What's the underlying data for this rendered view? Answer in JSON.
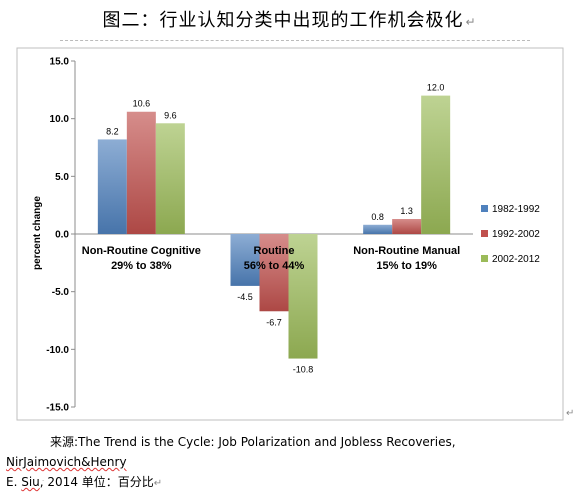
{
  "page": {
    "title": "图二：行业认知分类中出现的工作机会极化",
    "title_mark": "↵",
    "caption_prefix": "来源:",
    "caption_main": "The Trend is the Cycle: Job Polarization and Jobless Recoveries, ",
    "caption_authors": "NirJaimovich&Henry",
    "caption_line2": "E. ",
    "caption_siu": "Siu",
    "caption_year_unit": ", 2014 单位：百分比",
    "caption_mark": "↵",
    "row_mark": "↵"
  },
  "chart_data": {
    "type": "bar",
    "ylabel": "percent change",
    "ylim": [
      -15,
      15
    ],
    "yticks": [
      15.0,
      10.0,
      5.0,
      0.0,
      -5.0,
      -10.0,
      -15.0
    ],
    "ytick_labels": [
      "15.0",
      "10.0",
      "5.0",
      "0.0",
      "-5.0",
      "-10.0",
      "-15.0"
    ],
    "grid": false,
    "legend_position": "right",
    "categories": [
      {
        "line1": "Non-Routine Cognitive",
        "line2": "29% to 38%"
      },
      {
        "line1": "Routine",
        "line2": "56% to 44%"
      },
      {
        "line1": "Non-Routine Manual",
        "line2": "15% to 19%"
      }
    ],
    "series": [
      {
        "name": "1982-1992",
        "values": [
          8.2,
          -4.5,
          0.8
        ],
        "labels": [
          "8.2",
          "-4.5",
          "0.8"
        ],
        "color": "#4f81bd"
      },
      {
        "name": "1992-2002",
        "values": [
          10.6,
          -6.7,
          1.3
        ],
        "labels": [
          "10.6",
          "-6.7",
          "1.3"
        ],
        "color": "#c0504d"
      },
      {
        "name": "2002-2012",
        "values": [
          9.6,
          -10.8,
          12.0
        ],
        "labels": [
          "9.6",
          "-10.8",
          "12.0"
        ],
        "color": "#9bbb59"
      }
    ]
  }
}
